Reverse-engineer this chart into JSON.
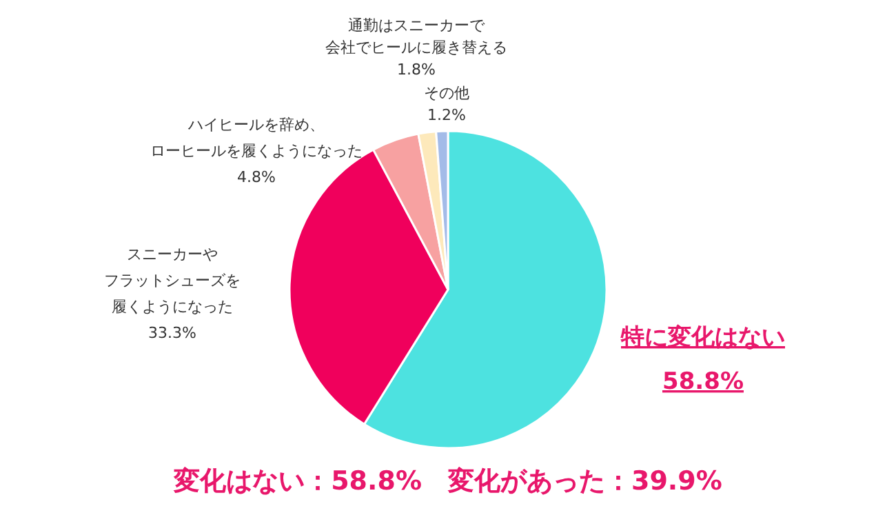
{
  "chart_data": {
    "type": "pie",
    "categories": [
      "特に変化はない",
      "スニーカーやフラットシューズを履くようになった",
      "ハイヒールを辞め、ローヒールを履くようになった",
      "通勤はスニーカーで会社でヒールに履き替える",
      "その他"
    ],
    "values": [
      58.8,
      33.3,
      4.8,
      1.8,
      1.2
    ],
    "value_labels": [
      "58.8%",
      "33.3%",
      "4.8%",
      "1.8%",
      "1.2%"
    ],
    "colors": [
      "#4de2e0",
      "#f0005c",
      "#f7a1a1",
      "#fde9bb",
      "#a3bbe8"
    ],
    "annotations": [
      "変化はない：58.8%　変化があった：39.9%"
    ]
  }
}
